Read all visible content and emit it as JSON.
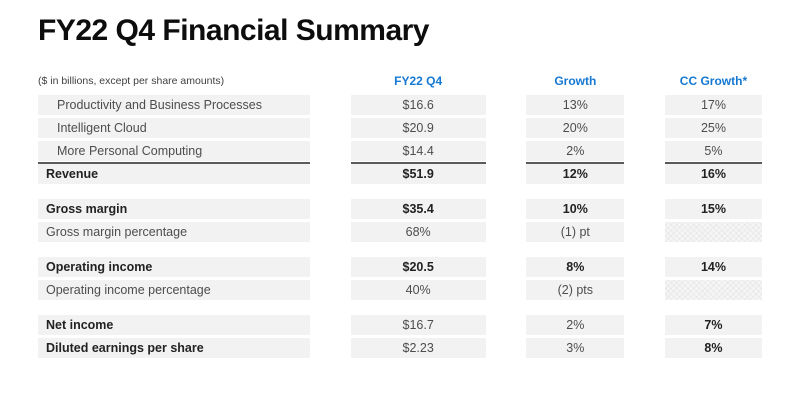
{
  "page": {
    "title": "FY22 Q4 Financial Summary",
    "subtitle": "($ in billions, except per share amounts)"
  },
  "colors": {
    "accent_blue": "#1578d2",
    "row_background": "#f2f2f2",
    "sum_line": "#5a5a5a",
    "title_text": "#0d0d0d"
  },
  "table": {
    "column_headers": [
      "FY22 Q4",
      "Growth",
      "CC Growth*"
    ],
    "sections": [
      {
        "rows": [
          {
            "label": "Productivity and Business Processes",
            "fy22_q4": "$16.6",
            "growth": "13%",
            "cc_growth": "17%"
          },
          {
            "label": "Intelligent Cloud",
            "fy22_q4": "$20.9",
            "growth": "20%",
            "cc_growth": "25%"
          },
          {
            "label": "More Personal Computing",
            "fy22_q4": "$14.4",
            "growth": "2%",
            "cc_growth": "5%"
          },
          {
            "label": "Revenue",
            "fy22_q4": "$51.9",
            "growth": "12%",
            "cc_growth": "16%"
          }
        ]
      },
      {
        "rows": [
          {
            "label": "Gross margin",
            "fy22_q4": "$35.4",
            "growth": "10%",
            "cc_growth": "15%"
          },
          {
            "label": "Gross margin percentage",
            "fy22_q4": "68%",
            "growth": "(1) pt",
            "cc_growth": ""
          }
        ]
      },
      {
        "rows": [
          {
            "label": "Operating income",
            "fy22_q4": "$20.5",
            "growth": "8%",
            "cc_growth": "14%"
          },
          {
            "label": "Operating income percentage",
            "fy22_q4": "40%",
            "growth": "(2) pts",
            "cc_growth": ""
          }
        ]
      },
      {
        "rows": [
          {
            "label": "Net income",
            "fy22_q4": "$16.7",
            "growth": "2%",
            "cc_growth": "7%"
          },
          {
            "label": "Diluted earnings per share",
            "fy22_q4": "$2.23",
            "growth": "3%",
            "cc_growth": "8%"
          }
        ]
      }
    ]
  }
}
